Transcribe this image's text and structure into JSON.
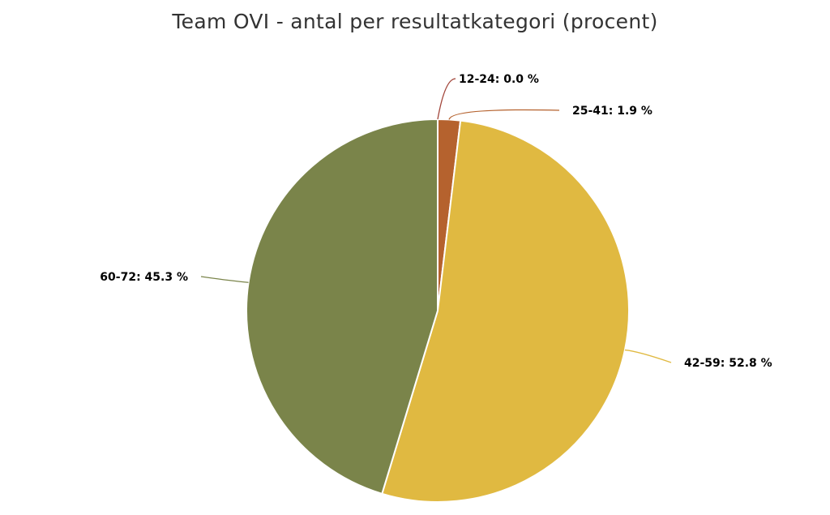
{
  "chart_data": {
    "type": "pie",
    "title": "Team OVI - antal per resultatkategori (procent)",
    "label_suffix": " %",
    "slices": [
      {
        "name": "12-24",
        "value": 0.0,
        "label_value": "0.0",
        "color": "#a2453a"
      },
      {
        "name": "25-41",
        "value": 1.9,
        "label_value": "1.9",
        "color": "#b5622e"
      },
      {
        "name": "42-59",
        "value": 52.8,
        "label_value": "52.8",
        "color": "#e0b941"
      },
      {
        "name": "60-72",
        "value": 45.3,
        "label_value": "45.3",
        "color": "#7a844a"
      }
    ]
  }
}
